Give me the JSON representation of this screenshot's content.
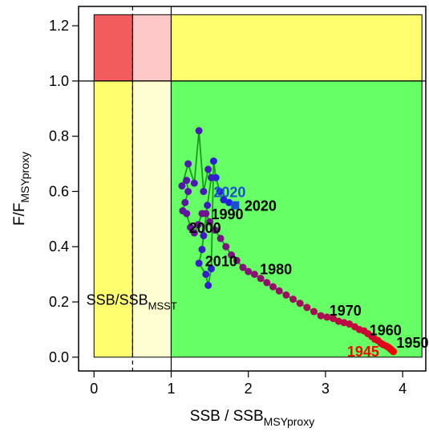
{
  "chart_data": {
    "type": "scatter",
    "xlabel": {
      "main": "SSB / SSB",
      "sub": "MSYproxy"
    },
    "ylabel": {
      "main": "F/F",
      "sub": "MSYproxy"
    },
    "xlim": [
      -0.2,
      4.3
    ],
    "ylim": [
      -0.05,
      1.27
    ],
    "x_ticks": [
      0,
      1,
      2,
      3,
      4
    ],
    "y_ticks": [
      0.0,
      0.2,
      0.4,
      0.6,
      0.8,
      1.0,
      1.2
    ],
    "grid": false,
    "zones": [
      {
        "x": [
          0,
          0.5
        ],
        "y": [
          1.0,
          1.24
        ],
        "color": "#f25c5c"
      },
      {
        "x": [
          0.5,
          1.0
        ],
        "y": [
          1.0,
          1.24
        ],
        "color": "#ffc8c8"
      },
      {
        "x": [
          1.0,
          4.25
        ],
        "y": [
          1.0,
          1.24
        ],
        "color": "#fefe6e"
      },
      {
        "x": [
          0,
          0.5
        ],
        "y": [
          0,
          1.0
        ],
        "color": "#fefe6e"
      },
      {
        "x": [
          0.5,
          1.0
        ],
        "y": [
          0,
          1.0
        ],
        "color": "#fefed0"
      },
      {
        "x": [
          1.0,
          4.25
        ],
        "y": [
          0,
          1.0
        ],
        "color": "#66ff66"
      }
    ],
    "reference_lines": {
      "ssb_msst": 0.5,
      "ssb_msy": 1.0,
      "f_msy": 1.0
    },
    "zone_label": {
      "main": "SSB/SSB",
      "sub": "MSST"
    },
    "series": [
      {
        "color_start": "#ff0000",
        "color_end": "#2020e0",
        "line_color": "#1a9c1a",
        "points": [
          [
            3.88,
            0.02
          ],
          [
            3.86,
            0.025
          ],
          [
            3.84,
            0.03
          ],
          [
            3.82,
            0.035
          ],
          [
            3.79,
            0.04
          ],
          [
            3.75,
            0.045
          ],
          [
            3.72,
            0.05
          ],
          [
            3.68,
            0.06
          ],
          [
            3.64,
            0.065
          ],
          [
            3.6,
            0.075
          ],
          [
            3.55,
            0.085
          ],
          [
            3.5,
            0.095
          ],
          [
            3.44,
            0.1
          ],
          [
            3.38,
            0.11
          ],
          [
            3.31,
            0.12
          ],
          [
            3.24,
            0.125
          ],
          [
            3.17,
            0.13
          ],
          [
            3.1,
            0.14
          ],
          [
            3.02,
            0.145
          ],
          [
            2.94,
            0.15
          ],
          [
            2.85,
            0.165
          ],
          [
            2.76,
            0.18
          ],
          [
            2.67,
            0.195
          ],
          [
            2.58,
            0.21
          ],
          [
            2.49,
            0.225
          ],
          [
            2.4,
            0.24
          ],
          [
            2.32,
            0.255
          ],
          [
            2.24,
            0.27
          ],
          [
            2.16,
            0.285
          ],
          [
            2.08,
            0.3
          ],
          [
            2.0,
            0.31
          ],
          [
            1.93,
            0.325
          ],
          [
            1.85,
            0.35
          ],
          [
            1.78,
            0.37
          ],
          [
            1.71,
            0.4
          ],
          [
            1.64,
            0.43
          ],
          [
            1.57,
            0.46
          ],
          [
            1.5,
            0.49
          ],
          [
            1.45,
            0.52
          ],
          [
            1.4,
            0.52
          ],
          [
            1.35,
            0.48
          ],
          [
            1.3,
            0.45
          ],
          [
            1.25,
            0.47
          ],
          [
            1.2,
            0.52
          ],
          [
            1.15,
            0.53
          ],
          [
            1.18,
            0.56
          ],
          [
            1.22,
            0.6
          ],
          [
            1.2,
            0.64
          ],
          [
            1.14,
            0.62
          ],
          [
            1.22,
            0.7
          ],
          [
            1.3,
            0.63
          ],
          [
            1.36,
            0.82
          ],
          [
            1.42,
            0.6
          ],
          [
            1.48,
            0.68
          ],
          [
            1.52,
            0.65
          ],
          [
            1.47,
            0.55
          ],
          [
            1.42,
            0.44
          ],
          [
            1.4,
            0.39
          ],
          [
            1.36,
            0.34
          ],
          [
            1.45,
            0.3
          ],
          [
            1.48,
            0.26
          ],
          [
            1.52,
            0.32
          ],
          [
            1.55,
            0.71
          ],
          [
            1.58,
            0.65
          ],
          [
            1.63,
            0.6
          ],
          [
            1.68,
            0.57
          ],
          [
            1.75,
            0.56
          ],
          [
            1.83,
            0.55
          ]
        ],
        "year_labels": [
          {
            "text": "1945",
            "x": 3.28,
            "y": 0.003,
            "color": "#ff0000"
          },
          {
            "text": "1950",
            "x": 3.92,
            "y": 0.035,
            "color": "#000000"
          },
          {
            "text": "1960",
            "x": 3.57,
            "y": 0.08,
            "color": "#000000"
          },
          {
            "text": "1970",
            "x": 3.05,
            "y": 0.15,
            "color": "#000000"
          },
          {
            "text": "1980",
            "x": 2.15,
            "y": 0.3,
            "color": "#000000"
          },
          {
            "text": "1990",
            "x": 1.52,
            "y": 0.5,
            "color": "#000000"
          },
          {
            "text": "2000",
            "x": 1.23,
            "y": 0.45,
            "color": "#000000"
          },
          {
            "text": "2010",
            "x": 1.44,
            "y": 0.33,
            "color": "#000000"
          },
          {
            "text": "2020",
            "x": 1.55,
            "y": 0.58,
            "color": "#1a4fd6"
          },
          {
            "text": "2020",
            "x": 1.95,
            "y": 0.53,
            "color": "#000000"
          }
        ]
      }
    ]
  }
}
